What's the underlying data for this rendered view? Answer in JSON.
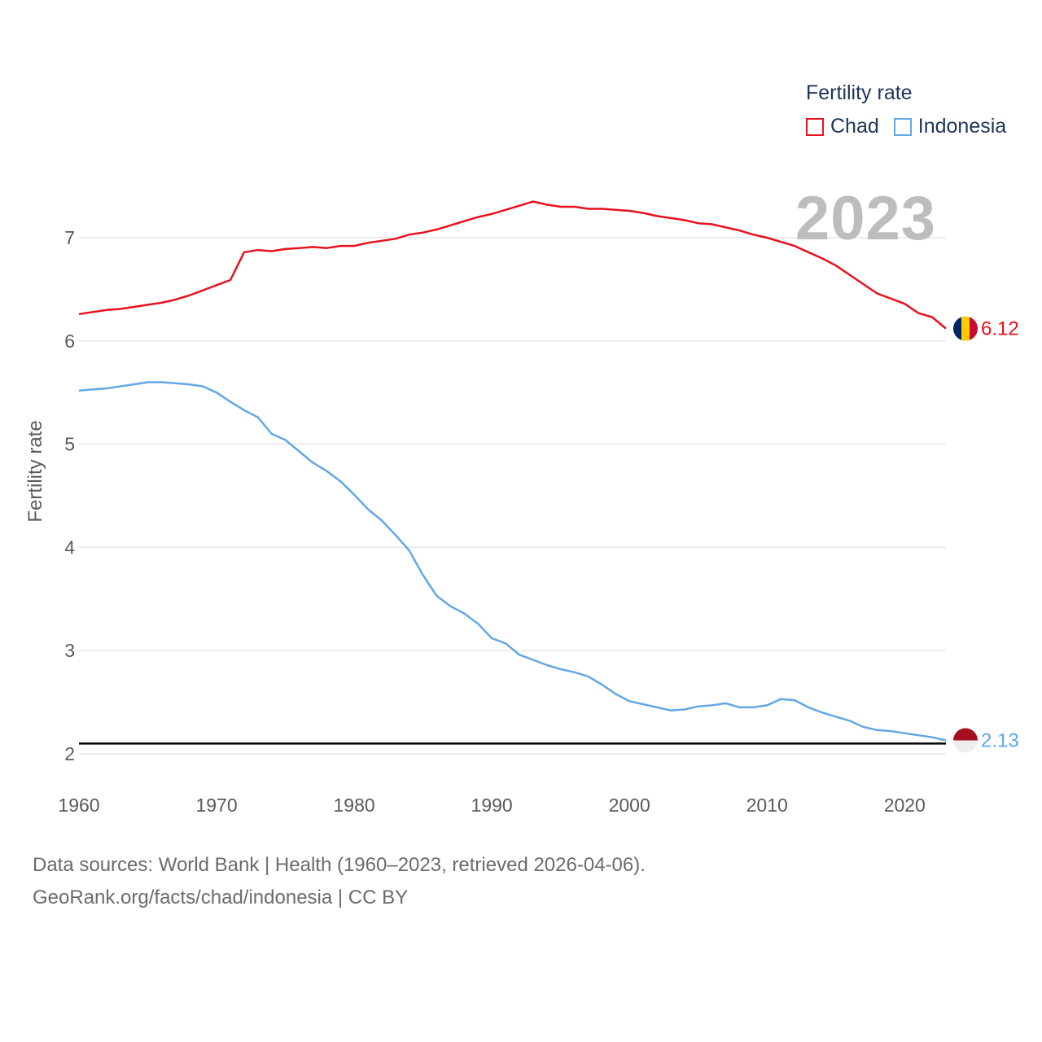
{
  "legend": {
    "title": "Fertility rate",
    "items": [
      {
        "name": "Chad",
        "color": "#e8111d"
      },
      {
        "name": "Indonesia",
        "color": "#62a8e5"
      }
    ]
  },
  "year_label": "2023",
  "source": {
    "line1": "Data sources: World Bank | Health (1960–2023, retrieved 2026-04-06).",
    "line2": "GeoRank.org/facts/chad/indonesia | CC BY"
  },
  "chart_data": {
    "type": "line",
    "title": "",
    "xlabel": "",
    "ylabel": "Fertility rate",
    "xlim": [
      1960,
      2023
    ],
    "ylim": [
      2,
      7.5
    ],
    "yticks": [
      2,
      3,
      4,
      5,
      6,
      7
    ],
    "xticks": [
      1960,
      1970,
      1980,
      1990,
      2000,
      2010,
      2020
    ],
    "reference_line": {
      "y": 2.1,
      "color": "#000000"
    },
    "x": [
      1960,
      1961,
      1962,
      1963,
      1964,
      1965,
      1966,
      1967,
      1968,
      1969,
      1970,
      1971,
      1972,
      1973,
      1974,
      1975,
      1976,
      1977,
      1978,
      1979,
      1980,
      1981,
      1982,
      1983,
      1984,
      1985,
      1986,
      1987,
      1988,
      1989,
      1990,
      1991,
      1992,
      1993,
      1994,
      1995,
      1996,
      1997,
      1998,
      1999,
      2000,
      2001,
      2002,
      2003,
      2004,
      2005,
      2006,
      2007,
      2008,
      2009,
      2010,
      2011,
      2012,
      2013,
      2014,
      2015,
      2016,
      2017,
      2018,
      2019,
      2020,
      2021,
      2022,
      2023
    ],
    "series": [
      {
        "name": "Chad",
        "color": "#e8111d",
        "end_label": "6.12",
        "values": [
          6.26,
          6.28,
          6.3,
          6.31,
          6.33,
          6.35,
          6.37,
          6.4,
          6.44,
          6.49,
          6.54,
          6.59,
          6.86,
          6.88,
          6.87,
          6.89,
          6.9,
          6.91,
          6.9,
          6.92,
          6.92,
          6.95,
          6.97,
          6.99,
          7.03,
          7.05,
          7.08,
          7.12,
          7.16,
          7.2,
          7.23,
          7.27,
          7.31,
          7.35,
          7.32,
          7.3,
          7.3,
          7.28,
          7.28,
          7.27,
          7.26,
          7.24,
          7.21,
          7.19,
          7.17,
          7.14,
          7.13,
          7.1,
          7.07,
          7.03,
          7.0,
          6.96,
          6.92,
          6.86,
          6.8,
          6.73,
          6.64,
          6.55,
          6.46,
          6.41,
          6.36,
          6.27,
          6.23,
          6.12
        ]
      },
      {
        "name": "Indonesia",
        "color": "#62a8e5",
        "end_label": "2.13",
        "values": [
          5.52,
          5.53,
          5.54,
          5.56,
          5.58,
          5.6,
          5.6,
          5.59,
          5.58,
          5.56,
          5.5,
          5.41,
          5.33,
          5.26,
          5.1,
          5.04,
          4.93,
          4.82,
          4.74,
          4.64,
          4.51,
          4.37,
          4.26,
          4.12,
          3.97,
          3.73,
          3.53,
          3.43,
          3.36,
          3.26,
          3.12,
          3.07,
          2.96,
          2.91,
          2.86,
          2.82,
          2.79,
          2.75,
          2.67,
          2.58,
          2.51,
          2.48,
          2.45,
          2.42,
          2.43,
          2.46,
          2.47,
          2.49,
          2.45,
          2.45,
          2.47,
          2.53,
          2.52,
          2.45,
          2.4,
          2.36,
          2.32,
          2.26,
          2.23,
          2.22,
          2.2,
          2.18,
          2.16,
          2.13
        ]
      }
    ]
  }
}
